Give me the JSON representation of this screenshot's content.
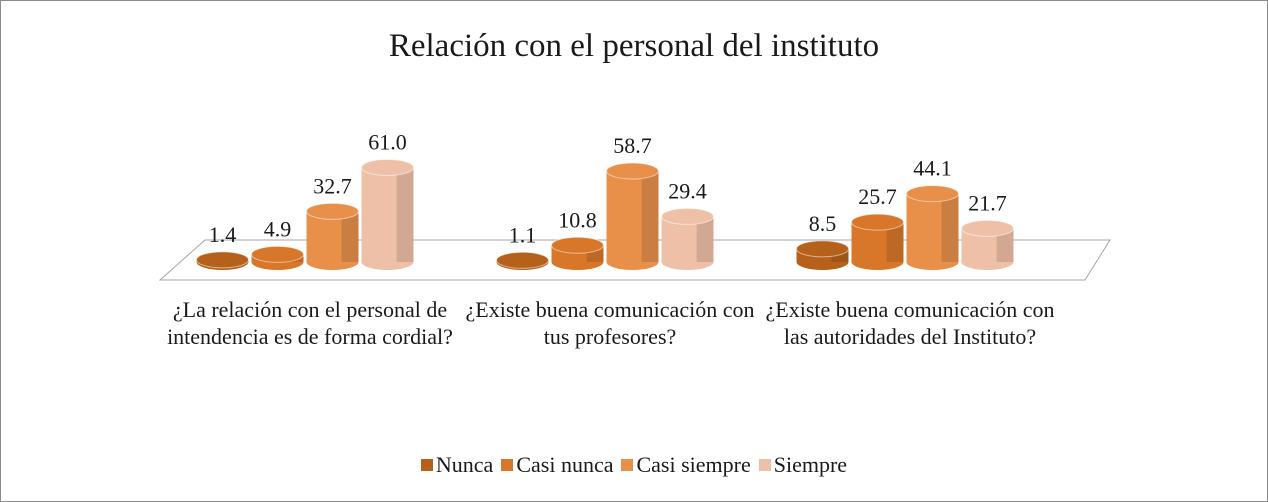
{
  "chart_data": {
    "type": "bar3d",
    "title": "Relación con el personal del instituto",
    "categories": [
      "¿La relación con el personal de intendencia es de forma cordial?",
      "¿Existe buena comunicación con tus profesores?",
      "¿Existe buena comunicación con las autoridades del Instituto?"
    ],
    "series": [
      {
        "name": "Nunca",
        "color": "#b5611c",
        "values": [
          1.4,
          1.1,
          8.5
        ],
        "value_labels": [
          "1.4",
          "1.1",
          "8.5"
        ]
      },
      {
        "name": "Casi nunca",
        "color": "#d8772a",
        "values": [
          4.9,
          10.8,
          25.7
        ],
        "value_labels": [
          "4.9",
          "10.8",
          "25.7"
        ]
      },
      {
        "name": "Casi siempre",
        "color": "#e8904a",
        "values": [
          32.7,
          58.7,
          44.1
        ],
        "value_labels": [
          "32.7",
          "58.7",
          "44.1"
        ]
      },
      {
        "name": "Siempre",
        "color": "#efc0a8",
        "values": [
          61.0,
          29.4,
          21.7
        ],
        "value_labels": [
          "61.0",
          "29.4",
          "21.7"
        ]
      }
    ],
    "legend": "bottom"
  }
}
